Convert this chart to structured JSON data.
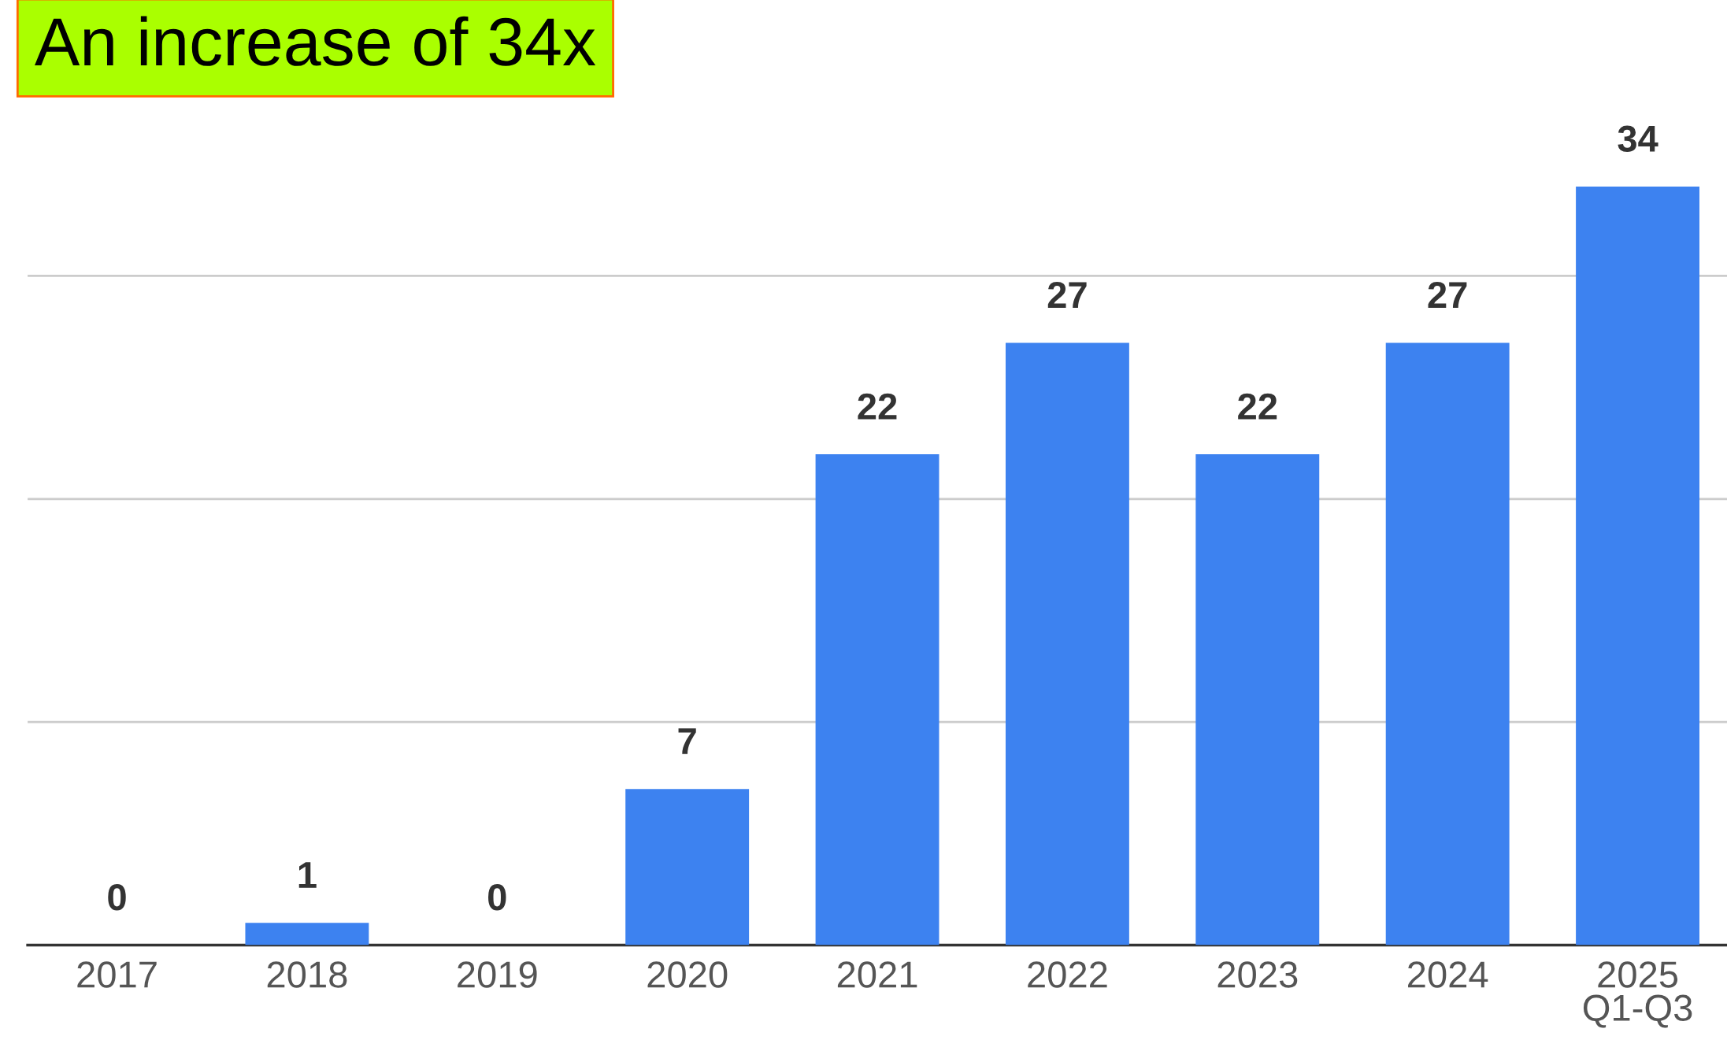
{
  "chart_data": {
    "type": "bar",
    "title": "An increase of 34x",
    "categories": [
      "2017",
      "2018",
      "2019",
      "2020",
      "2021",
      "2022",
      "2023",
      "2024",
      "2025\nQ1-Q3"
    ],
    "values": [
      0,
      1,
      0,
      7,
      22,
      27,
      22,
      27,
      34
    ],
    "color": "#3d82f0",
    "yticks": [
      {
        "value": 0,
        "label": null
      },
      {
        "value": 10,
        "label": null
      },
      {
        "value": 20,
        "label": null
      },
      {
        "value": 30,
        "label": null
      }
    ],
    "grid": "y",
    "data_labels": true,
    "tick_labels": "x"
  }
}
